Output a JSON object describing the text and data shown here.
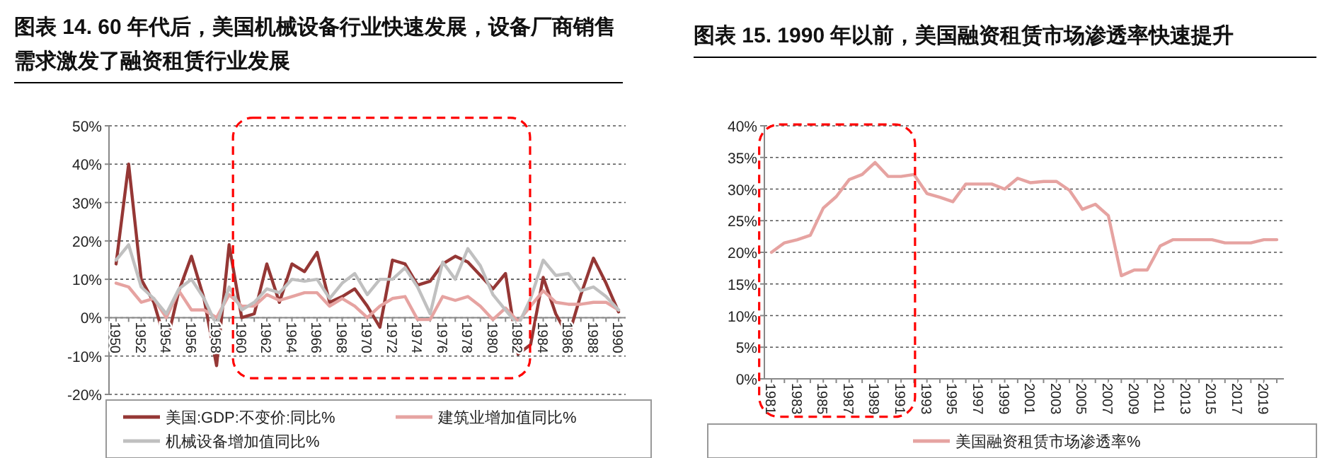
{
  "chart_data": [
    {
      "type": "line",
      "title": "图表 14. 60 年代后，美国机械设备行业快速发展，设备厂商销售需求激发了融资租赁行业发展",
      "categories": [
        "1950",
        null,
        "1952",
        null,
        "1954",
        null,
        "1956",
        null,
        "1958",
        null,
        "1960",
        null,
        "1962",
        null,
        "1964",
        null,
        "1966",
        null,
        "1968",
        null,
        "1970",
        null,
        "1972",
        null,
        "1974",
        null,
        "1976",
        null,
        "1978",
        null,
        "1980",
        null,
        "1982",
        null,
        "1984",
        null,
        "1986",
        null,
        "1988",
        null,
        "1990"
      ],
      "series": [
        {
          "name": "美国:GDP:不变价:同比%",
          "color": "#953735",
          "values": [
            14,
            40,
            10,
            4,
            -7,
            7,
            16,
            5,
            -12.5,
            19,
            0,
            1,
            14,
            4,
            14,
            12,
            17,
            4,
            5.5,
            7.5,
            3,
            -2.5,
            15,
            14,
            8.5,
            9.5,
            14,
            16,
            14.5,
            11,
            7.5,
            11.5,
            -9.5,
            -7,
            10.5,
            1,
            -5,
            6,
            15.5,
            9,
            1.5
          ]
        },
        {
          "name": "建筑业增加值同比%",
          "color": "#e6a3a1",
          "values": [
            9,
            8,
            4,
            5,
            0,
            7,
            2,
            2,
            0,
            6,
            3,
            3,
            6,
            4.5,
            5.5,
            6.5,
            6.5,
            3,
            5,
            3,
            0,
            3,
            5,
            5.5,
            -0.5,
            -0.5,
            5.5,
            4.5,
            5.5,
            3,
            -0.5,
            2.5,
            -1,
            3,
            7,
            4,
            3.5,
            3.5,
            4,
            4,
            2
          ]
        },
        {
          "name": "机械设备增加值同比%",
          "color": "#c0c0c0",
          "values": [
            15,
            19,
            8,
            5,
            1,
            7.5,
            10,
            5,
            -2,
            8,
            2,
            4,
            7.5,
            6.5,
            10,
            9.5,
            10,
            5,
            9,
            11.5,
            6,
            10,
            10,
            13,
            8,
            1,
            14.5,
            10,
            18,
            13.5,
            6,
            2,
            -2,
            5,
            15,
            11,
            11.5,
            7,
            8,
            5.5,
            2
          ]
        }
      ],
      "ylim": [
        -20,
        50
      ],
      "yticks": [
        {
          "value": -20,
          "label": "-20%"
        },
        {
          "value": -10,
          "label": "-10%"
        },
        {
          "value": 0,
          "label": "0%"
        },
        {
          "value": 10,
          "label": "10%"
        },
        {
          "value": 20,
          "label": "20%"
        },
        {
          "value": 30,
          "label": "30%"
        },
        {
          "value": 40,
          "label": "40%"
        },
        {
          "value": 50,
          "label": "50%"
        }
      ],
      "grid": "y",
      "legend": "bottom"
    },
    {
      "type": "line",
      "title": "图表 15. 1990 年以前，美国融资租赁市场渗透率快速提升",
      "categories": [
        "1981",
        null,
        "1983",
        null,
        "1985",
        null,
        "1987",
        null,
        "1989",
        null,
        "1991",
        null,
        "1993",
        null,
        "1995",
        null,
        "1997",
        null,
        "1999",
        null,
        "2001",
        null,
        "2003",
        null,
        "2005",
        null,
        "2007",
        null,
        "2009",
        null,
        "2011",
        null,
        "2013",
        null,
        "2015",
        null,
        "2017",
        null,
        "2019",
        null
      ],
      "series": [
        {
          "name": "美国融资租赁市场渗透率%",
          "color": "#e6a3a1",
          "values": [
            20,
            21.5,
            22,
            22.7,
            27,
            28.8,
            31.5,
            32.3,
            34.2,
            32,
            32,
            32.3,
            29.3,
            28.7,
            28,
            30.8,
            30.8,
            30.8,
            30,
            31.7,
            31,
            31.2,
            31.2,
            29.8,
            26.8,
            27.6,
            25.8,
            16.3,
            17.2,
            17.2,
            21,
            22,
            22,
            22,
            22,
            21.5,
            21.5,
            21.5,
            22,
            22
          ]
        }
      ],
      "ylim": [
        0,
        40
      ],
      "yticks": [
        {
          "value": 0,
          "label": "0%"
        },
        {
          "value": 5,
          "label": "5%"
        },
        {
          "value": 10,
          "label": "10%"
        },
        {
          "value": 15,
          "label": "15%"
        },
        {
          "value": 20,
          "label": "20%"
        },
        {
          "value": 25,
          "label": "25%"
        },
        {
          "value": 30,
          "label": "30%"
        },
        {
          "value": 35,
          "label": "35%"
        },
        {
          "value": 40,
          "label": "40%"
        }
      ],
      "grid": "y",
      "legend": "bottom"
    }
  ]
}
